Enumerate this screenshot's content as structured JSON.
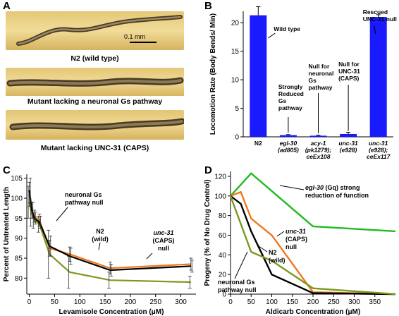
{
  "panels": {
    "A": {
      "letter": "A",
      "scale_bar": "0.1 mm",
      "captions": [
        "N2 (wild type)",
        "Mutant lacking a neuronal Gs pathway",
        "Mutant lacking UNC-31 (CAPS)"
      ]
    }
  },
  "chart_data": [
    {
      "panel": "B",
      "type": "bar",
      "ylabel": "Locomotion Rate (Body Bends/ Min)",
      "ylim": [
        0,
        22
      ],
      "yticks": [
        0,
        5,
        10,
        15,
        20
      ],
      "categories": [
        {
          "lines": [
            "N2"
          ],
          "italic": false
        },
        {
          "lines": [
            "egl-30",
            "(ad805)"
          ],
          "italic": true
        },
        {
          "lines": [
            "acy-1",
            "(pk1279);",
            "ceEx108"
          ],
          "italic": true
        },
        {
          "lines": [
            "unc-31",
            "(e928)"
          ],
          "italic": true
        },
        {
          "lines": [
            "unc-31",
            "(e928);",
            "ceEx117"
          ],
          "italic": true
        }
      ],
      "values": [
        21.3,
        0.3,
        0.2,
        0.5,
        21.0
      ],
      "errors": [
        1.5,
        0.1,
        0.1,
        0.3,
        0.4
      ],
      "bar_color": "#1a1aff",
      "annotations": [
        {
          "text": [
            "Wild type"
          ]
        },
        {
          "text": [
            "Strongly",
            "Reduced",
            "Gs",
            "pathway"
          ]
        },
        {
          "text": [
            "Null for",
            "neuronal",
            "Gs",
            "pathway"
          ]
        },
        {
          "text": [
            "Null for",
            "UNC-31",
            "(CAPS)"
          ]
        },
        {
          "text": [
            "Rescued",
            "UNC-31 null"
          ]
        }
      ]
    },
    {
      "panel": "C",
      "type": "line",
      "xlabel": "Levamisole Concentration (μM)",
      "ylabel": "Percent of Untreated Length",
      "xlim": [
        -5,
        330
      ],
      "ylim": [
        76,
        106
      ],
      "xticks": [
        0,
        50,
        100,
        150,
        200,
        250,
        300
      ],
      "yticks": [
        80,
        85,
        90,
        95,
        100,
        105
      ],
      "series": [
        {
          "name": "N2 (wild)",
          "color": "#000000",
          "x": [
            0,
            5,
            10,
            20,
            40,
            80,
            160,
            320
          ],
          "y": [
            102,
            97,
            95,
            94,
            88,
            85.5,
            82,
            83
          ],
          "err": [
            3,
            2,
            1.5,
            1.5,
            2.5,
            2,
            1.5,
            1.5
          ]
        },
        {
          "name": "unc-31 (CAPS) null",
          "color": "#f07820",
          "x": [
            0,
            5,
            10,
            20,
            40,
            80,
            160,
            320
          ],
          "y": [
            101,
            97,
            95.5,
            94.5,
            87.5,
            86,
            82.5,
            83.5
          ],
          "err": [
            3,
            2,
            1.5,
            1.5,
            2,
            1.8,
            1.5,
            1.5
          ]
        },
        {
          "name": "neuronal Gs pathway null",
          "color": "#7a9a1e",
          "x": [
            0,
            5,
            10,
            20,
            40,
            80,
            160,
            320
          ],
          "y": [
            99,
            96,
            94.5,
            93.5,
            86,
            81.5,
            79.5,
            79
          ],
          "err": [
            4,
            3,
            2,
            2,
            6,
            4,
            2,
            1.5
          ]
        }
      ],
      "labels": [
        {
          "text": [
            "neuronal Gs",
            "pathway null"
          ],
          "italic_first_word": false
        },
        {
          "text": [
            "N2",
            "(wild)"
          ],
          "italic_first_word": false
        },
        {
          "text": [
            "unc-31",
            "(CAPS)",
            "null"
          ],
          "italic_first_word": true
        }
      ]
    },
    {
      "panel": "D",
      "type": "line",
      "xlabel": "Aldicarb Concentration (μM)",
      "ylabel": "Progeny (% of No Drug Control)",
      "xlim": [
        0,
        400
      ],
      "ylim": [
        0,
        125
      ],
      "xticks": [
        0,
        50,
        100,
        150,
        200,
        250,
        300,
        350
      ],
      "yticks": [
        0,
        20,
        40,
        60,
        80,
        100,
        120
      ],
      "series": [
        {
          "name": "egl-30 (Gq) strong reduction of function",
          "color": "#22bb22",
          "x": [
            0,
            50,
            200,
            400
          ],
          "y": [
            100,
            123,
            69,
            64
          ]
        },
        {
          "name": "unc-31 (CAPS) null",
          "color": "#f07820",
          "x": [
            0,
            25,
            50,
            100,
            200,
            400
          ],
          "y": [
            100,
            104,
            77,
            60,
            2,
            0
          ]
        },
        {
          "name": "N2 (wild)",
          "color": "#000000",
          "x": [
            0,
            25,
            50,
            100,
            200,
            400
          ],
          "y": [
            100,
            92,
            64,
            20,
            1,
            0
          ]
        },
        {
          "name": "neuronal Gs pathway null",
          "color": "#7a9a1e",
          "x": [
            0,
            50,
            100,
            200,
            400
          ],
          "y": [
            100,
            43,
            34,
            6,
            0
          ]
        }
      ],
      "labels": [
        {
          "lines": [
            {
              "it": "egl-30",
              "rest": " (Gq) strong"
            },
            {
              "it": "",
              "rest": "reduction of function"
            }
          ]
        },
        {
          "lines": [
            {
              "it": "unc-31",
              "rest": ""
            },
            {
              "it": "",
              "rest": "(CAPS)"
            },
            {
              "it": "",
              "rest": "null"
            }
          ]
        },
        {
          "lines": [
            {
              "it": "",
              "rest": "N2"
            },
            {
              "it": "",
              "rest": "(wild)"
            }
          ]
        },
        {
          "lines": [
            {
              "it": "",
              "rest": "neuronal Gs"
            },
            {
              "it": "",
              "rest": "pathway null"
            }
          ]
        }
      ]
    }
  ],
  "letters": {
    "B": "B",
    "C": "C",
    "D": "D"
  }
}
